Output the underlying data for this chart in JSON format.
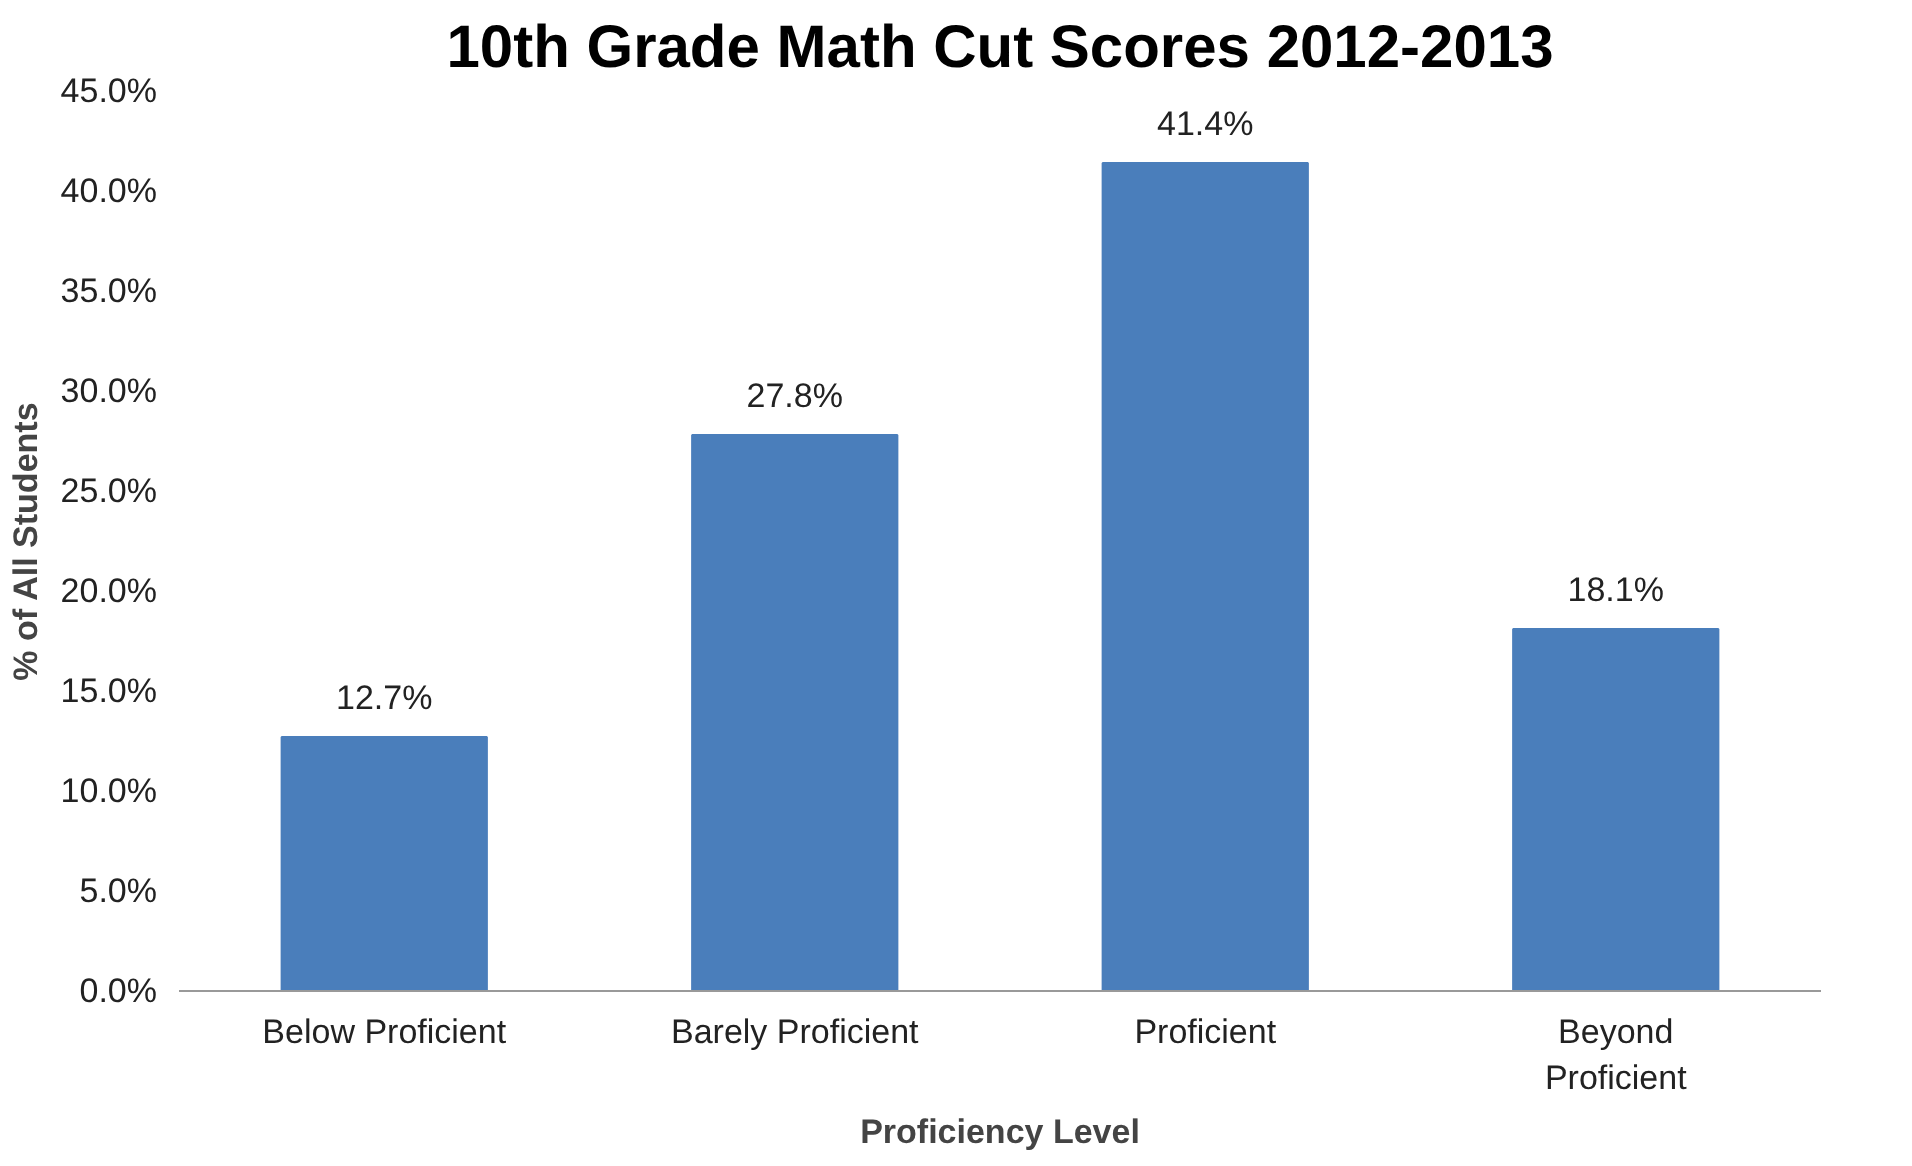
{
  "chart_data": {
    "type": "bar",
    "title": "10th Grade Math Cut Scores 2012-2013",
    "xlabel": "Proficiency Level",
    "ylabel": "% of All Students",
    "categories": [
      "Below Proficient",
      "Barely Proficient",
      "Proficient",
      "Beyond\nProficient"
    ],
    "values": [
      12.7,
      27.8,
      41.4,
      18.1
    ],
    "value_labels": [
      "12.7%",
      "27.8%",
      "41.4%",
      "18.1%"
    ],
    "color": "#4a7ebb",
    "ylim": [
      0,
      45
    ],
    "yticks": [
      {
        "value": 0,
        "label": "0.0%"
      },
      {
        "value": 5,
        "label": "5.0%"
      },
      {
        "value": 10,
        "label": "10.0%"
      },
      {
        "value": 15,
        "label": "15.0%"
      },
      {
        "value": 20,
        "label": "20.0%"
      },
      {
        "value": 25,
        "label": "25.0%"
      },
      {
        "value": 30,
        "label": "30.0%"
      },
      {
        "value": 35,
        "label": "35.0%"
      },
      {
        "value": 40,
        "label": "40.0%"
      },
      {
        "value": 45,
        "label": "45.0%"
      }
    ],
    "grid": false
  }
}
